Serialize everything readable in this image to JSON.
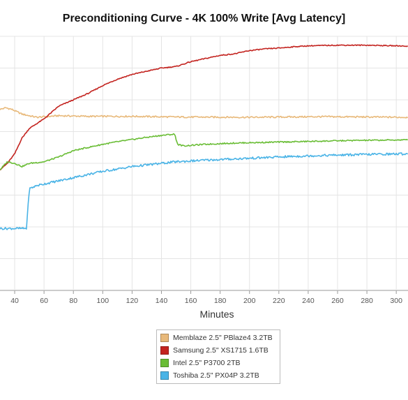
{
  "chart_data": {
    "type": "line",
    "title": "Preconditioning Curve - 4K 100% Write [Avg Latency]",
    "xlabel": "Minutes",
    "ylabel": "",
    "xlim": [
      30,
      308
    ],
    "ylim": [
      0,
      8
    ],
    "x_ticks": [
      40,
      60,
      80,
      100,
      120,
      140,
      160,
      180,
      200,
      220,
      240,
      260,
      280,
      300
    ],
    "y_tick_labels_visible": false,
    "grid": true,
    "legend_position": "bottom",
    "series": [
      {
        "name": "Memblaze 2.5\" PBlaze4 3.2TB",
        "color": "#E8B97A",
        "points": [
          [
            30,
            5.7
          ],
          [
            34,
            5.75
          ],
          [
            38,
            5.7
          ],
          [
            45,
            5.55
          ],
          [
            55,
            5.45
          ],
          [
            70,
            5.5
          ],
          [
            90,
            5.48
          ],
          [
            120,
            5.48
          ],
          [
            150,
            5.46
          ],
          [
            200,
            5.45
          ],
          [
            250,
            5.47
          ],
          [
            308,
            5.45
          ]
        ]
      },
      {
        "name": "Samsung 2.5\" XS1715 1.6TB",
        "color": "#C3231F",
        "points": [
          [
            30,
            3.8
          ],
          [
            35,
            4.0
          ],
          [
            40,
            4.3
          ],
          [
            45,
            4.8
          ],
          [
            50,
            5.1
          ],
          [
            60,
            5.4
          ],
          [
            70,
            5.8
          ],
          [
            80,
            6.0
          ],
          [
            90,
            6.2
          ],
          [
            100,
            6.45
          ],
          [
            110,
            6.65
          ],
          [
            120,
            6.8
          ],
          [
            130,
            6.9
          ],
          [
            140,
            7.0
          ],
          [
            150,
            7.05
          ],
          [
            160,
            7.2
          ],
          [
            170,
            7.3
          ],
          [
            180,
            7.4
          ],
          [
            190,
            7.45
          ],
          [
            200,
            7.55
          ],
          [
            210,
            7.6
          ],
          [
            220,
            7.63
          ],
          [
            230,
            7.67
          ],
          [
            240,
            7.7
          ],
          [
            260,
            7.72
          ],
          [
            280,
            7.72
          ],
          [
            300,
            7.7
          ],
          [
            308,
            7.69
          ]
        ]
      },
      {
        "name": "Intel 2.5\" P3700 2TB",
        "color": "#6ABD36",
        "points": [
          [
            30,
            3.8
          ],
          [
            35,
            4.05
          ],
          [
            40,
            4.0
          ],
          [
            45,
            3.9
          ],
          [
            50,
            4.0
          ],
          [
            60,
            4.05
          ],
          [
            70,
            4.2
          ],
          [
            80,
            4.4
          ],
          [
            90,
            4.5
          ],
          [
            100,
            4.6
          ],
          [
            110,
            4.68
          ],
          [
            120,
            4.75
          ],
          [
            130,
            4.82
          ],
          [
            140,
            4.88
          ],
          [
            149,
            4.92
          ],
          [
            151,
            4.6
          ],
          [
            155,
            4.55
          ],
          [
            170,
            4.6
          ],
          [
            190,
            4.64
          ],
          [
            210,
            4.66
          ],
          [
            230,
            4.68
          ],
          [
            250,
            4.7
          ],
          [
            270,
            4.72
          ],
          [
            290,
            4.73
          ],
          [
            308,
            4.74
          ]
        ]
      },
      {
        "name": "Toshiba 2.5\" PX04P 3.2TB",
        "color": "#49B3E6",
        "points": [
          [
            30,
            1.95
          ],
          [
            35,
            1.95
          ],
          [
            40,
            1.95
          ],
          [
            48,
            1.95
          ],
          [
            50,
            3.2
          ],
          [
            55,
            3.3
          ],
          [
            60,
            3.35
          ],
          [
            70,
            3.45
          ],
          [
            80,
            3.55
          ],
          [
            90,
            3.65
          ],
          [
            100,
            3.75
          ],
          [
            110,
            3.82
          ],
          [
            120,
            3.9
          ],
          [
            130,
            3.95
          ],
          [
            140,
            4.0
          ],
          [
            150,
            4.05
          ],
          [
            170,
            4.1
          ],
          [
            190,
            4.14
          ],
          [
            210,
            4.18
          ],
          [
            230,
            4.22
          ],
          [
            250,
            4.25
          ],
          [
            270,
            4.27
          ],
          [
            290,
            4.29
          ],
          [
            308,
            4.3
          ]
        ]
      }
    ]
  }
}
